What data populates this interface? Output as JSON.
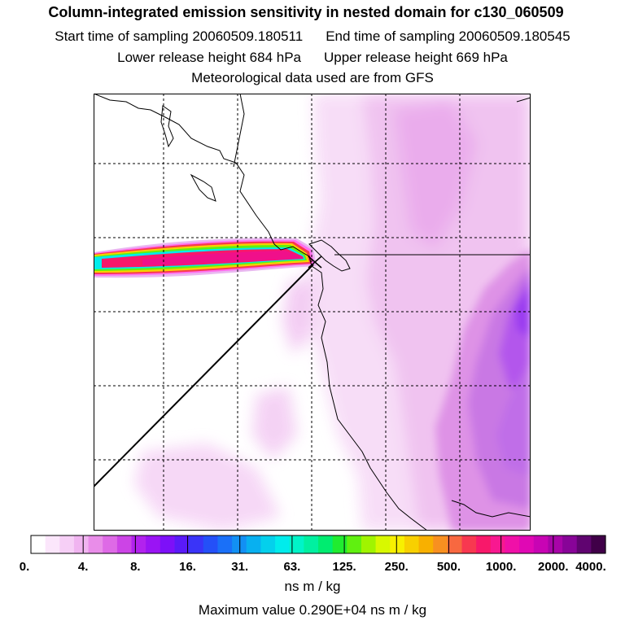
{
  "title": "Column-integrated emission sensitivity in nested domain for c130_060509",
  "start_label": "Start time of sampling 20060509.180511",
  "end_label": "End time of sampling 20060509.180545",
  "lower_label": "Lower release height  684 hPa",
  "upper_label": "Upper release height  669 hPa",
  "met_label": "Meteorological data used are from GFS",
  "colorbar": {
    "tick_labels": [
      "0.",
      "4.",
      "8.",
      "16.",
      "31.",
      "63.",
      "125.",
      "250.",
      "500.",
      "1000.",
      "2000.",
      "4000."
    ],
    "colors": [
      "#ffffff",
      "#fbe6fb",
      "#f6cff6",
      "#f0b4f0",
      "#e98de9",
      "#de6ae6",
      "#cc44e6",
      "#b222ee",
      "#9a14f4",
      "#7d10f8",
      "#5a1af8",
      "#3a34f8",
      "#2450f8",
      "#1a70f8",
      "#1290f4",
      "#08b0f0",
      "#04d0ec",
      "#00ecec",
      "#00f4c8",
      "#00f0a0",
      "#00ec70",
      "#20ec30",
      "#60f010",
      "#a0f400",
      "#d8f800",
      "#f8f000",
      "#f8d000",
      "#f8b000",
      "#f89020",
      "#f86840",
      "#f83850",
      "#f8186a",
      "#f81890",
      "#f010a8",
      "#e008b4",
      "#c804b4",
      "#a804a8",
      "#880498",
      "#600470",
      "#400048"
    ],
    "units": "ns m / kg",
    "ticks": [
      0,
      4,
      8,
      16,
      31,
      63,
      125,
      250,
      500,
      1000,
      2000,
      4000
    ]
  },
  "max_label": "Maximum value  0.290E+04 ns m / kg",
  "chart_data": {
    "type": "heatmap",
    "title": "Column-integrated emission sensitivity in nested domain for c130_060509",
    "variable": "Column-integrated emission sensitivity",
    "units": "ns m / kg",
    "max_value": 2900,
    "release": {
      "start": "20060509.180511",
      "end": "20060509.180545",
      "lower_hpa": 684,
      "upper_hpa": 669
    },
    "met_data": "GFS",
    "color_scale_ticks": [
      0,
      4,
      8,
      16,
      31,
      63,
      125,
      250,
      500,
      1000,
      2000,
      4000
    ],
    "features": [
      {
        "name": "westward plume",
        "range": "500–2000",
        "color": "magenta/red core with yellow-green-cyan edges"
      },
      {
        "name": "eastern band",
        "range": "4–16",
        "color": "light pink to purple"
      }
    ]
  }
}
